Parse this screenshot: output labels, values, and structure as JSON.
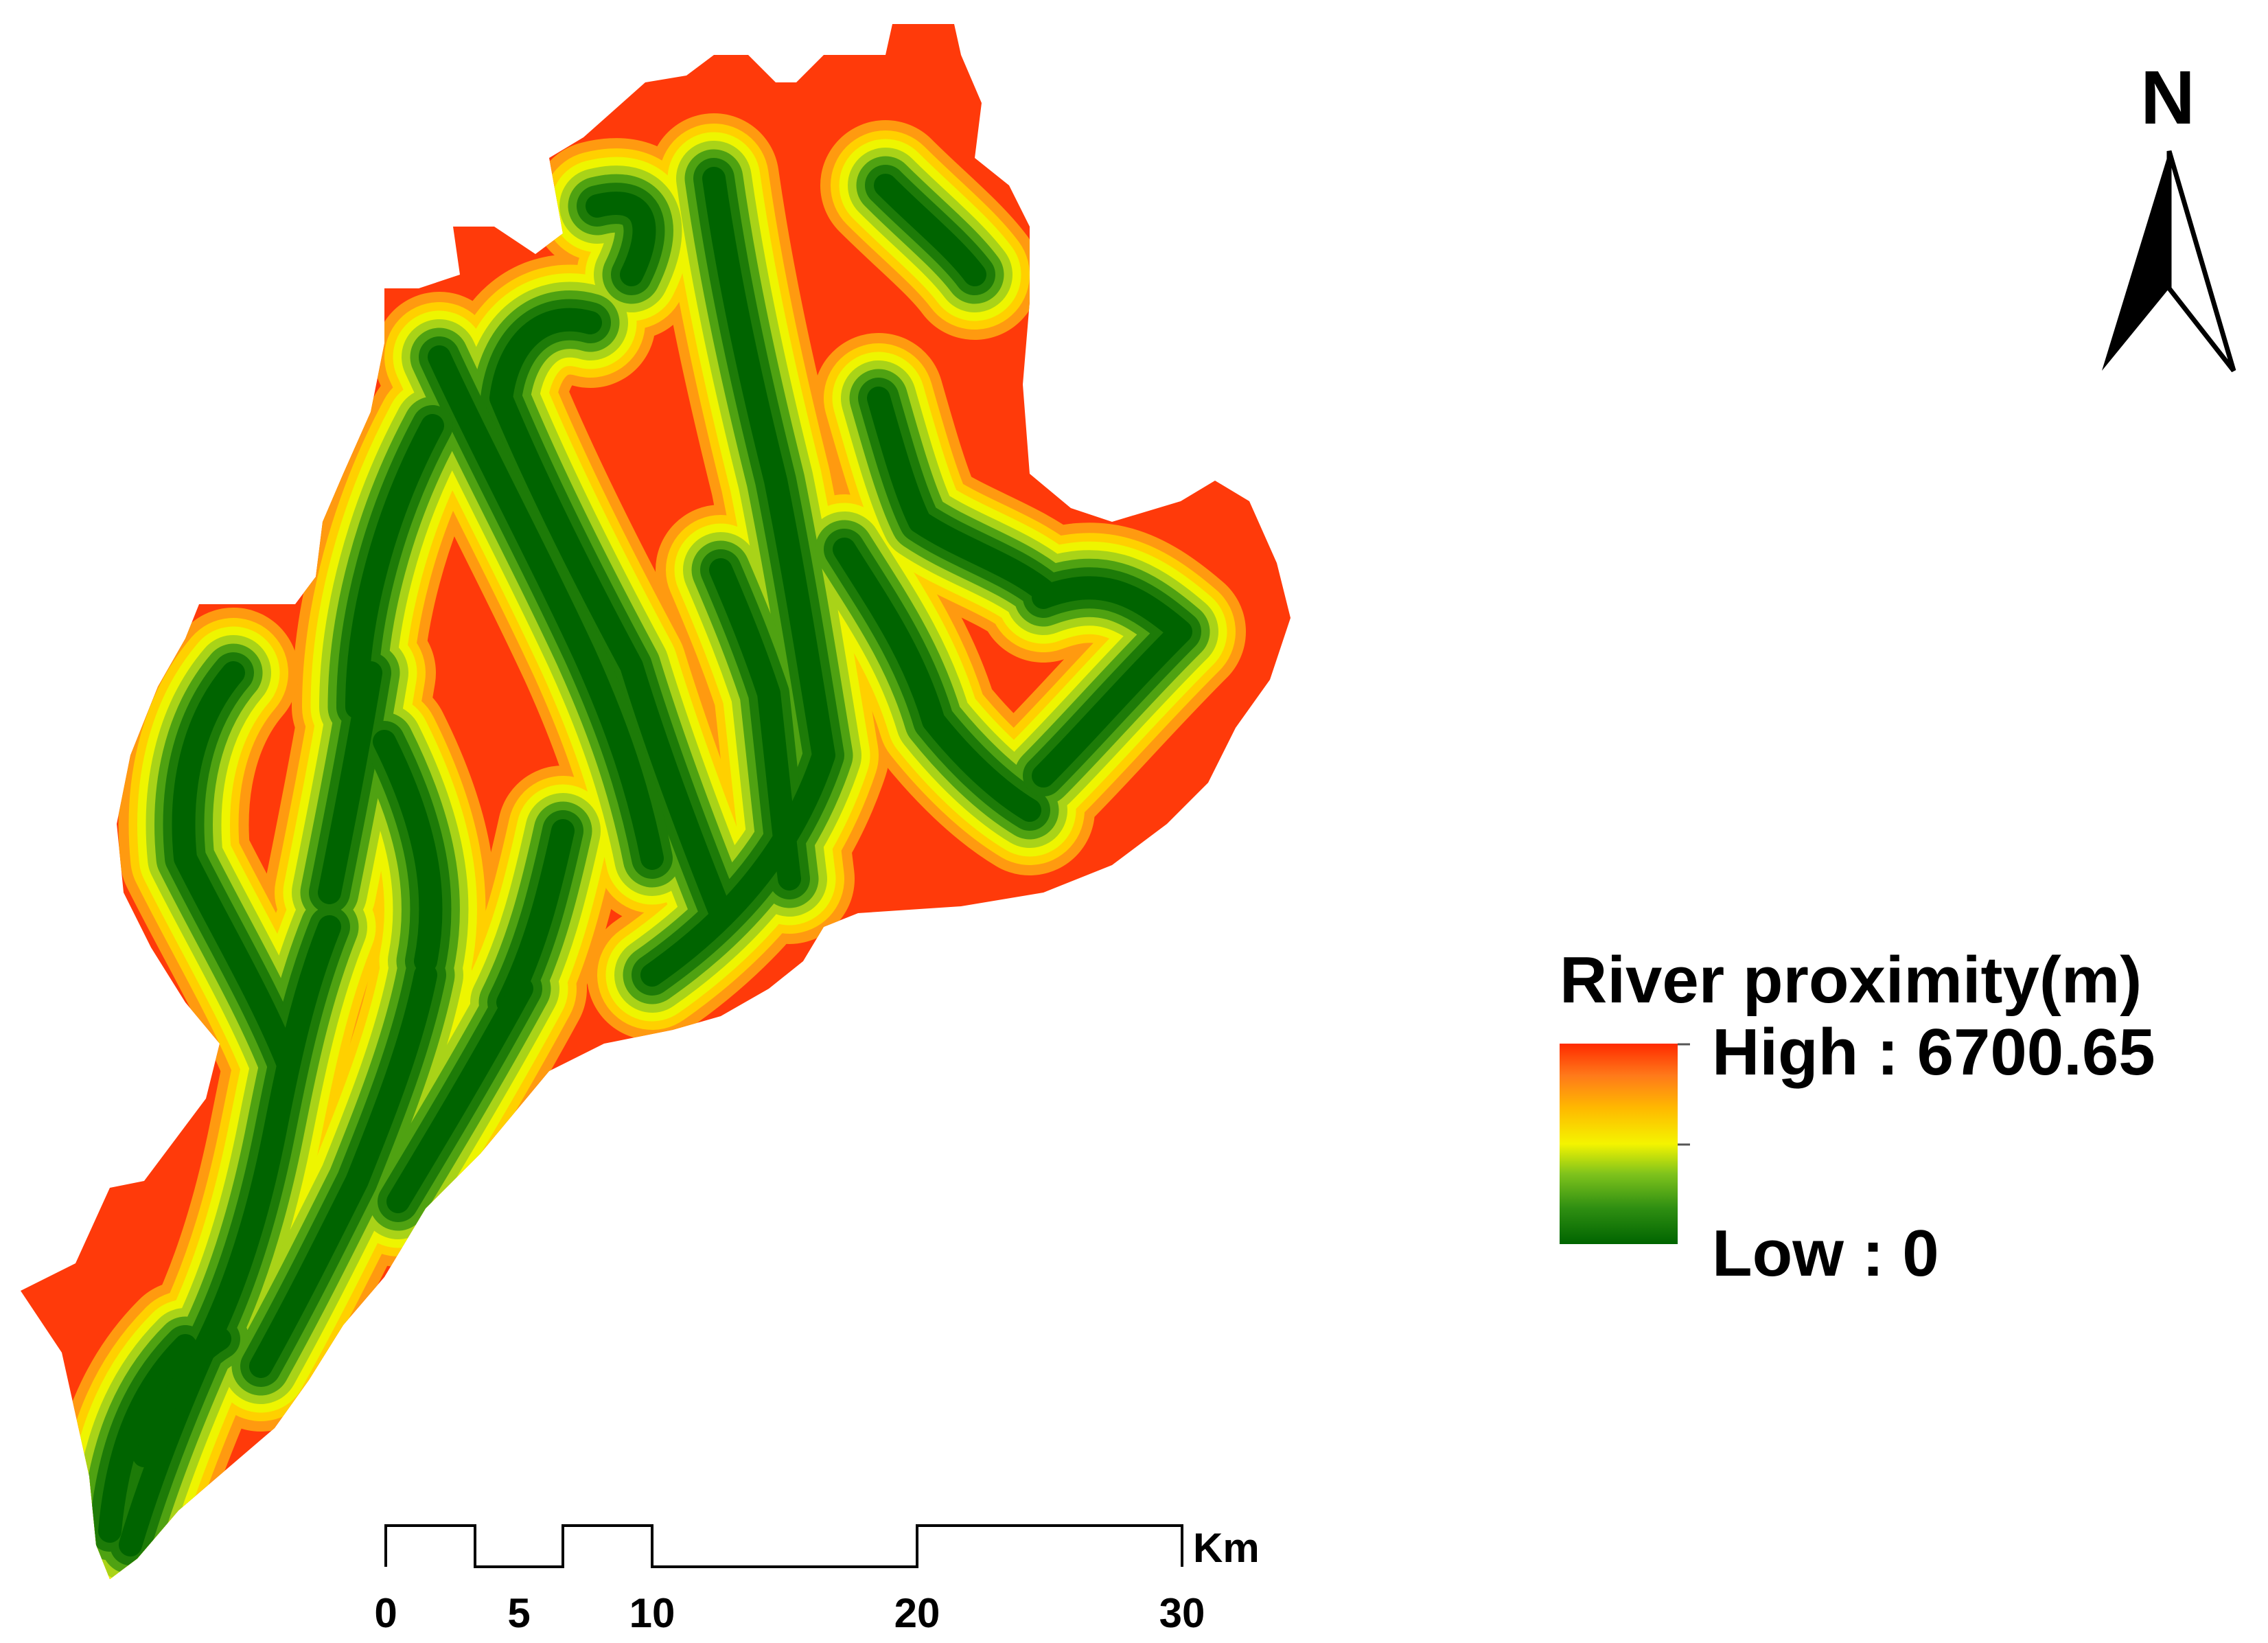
{
  "north_arrow": {
    "label": "N"
  },
  "legend": {
    "title": "River proximity(m)",
    "high_label": "High : 6700.65",
    "low_label": "Low : 0",
    "high_value": 6700.65,
    "low_value": 0,
    "color_ramp": [
      "#006400",
      "#2f8f12",
      "#7fc31c",
      "#f4f400",
      "#ffb800",
      "#ff7a1a",
      "#ff2a00"
    ]
  },
  "scale_bar": {
    "unit": "Km",
    "ticks": [
      "0",
      "5",
      "10",
      "20",
      "30"
    ],
    "segments_km": [
      [
        0,
        3.3
      ],
      [
        3.3,
        6.7
      ],
      [
        6.7,
        10
      ],
      [
        10,
        20
      ],
      [
        20,
        30
      ]
    ]
  },
  "colors": {
    "far": "#ff2a00",
    "mid": "#f4f400",
    "near": "#006400"
  }
}
